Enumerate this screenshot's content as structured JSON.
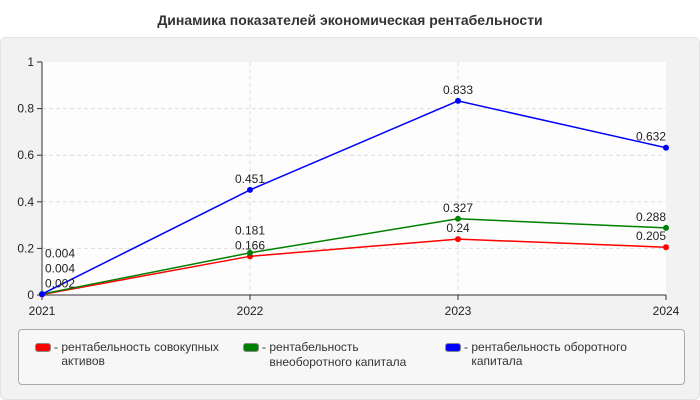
{
  "chart_data": {
    "type": "line",
    "title": "Динамика показателей экономическая рентабельности",
    "categories": [
      "2021",
      "2022",
      "2023",
      "2024"
    ],
    "ylim": [
      0,
      1
    ],
    "yticks": [
      "0",
      "0.2",
      "0.4",
      "0.6",
      "0.8",
      "1"
    ],
    "grid": true,
    "legend_position": "bottom",
    "series": [
      {
        "name": "рентабельность совокупных активов",
        "color": "#ff0000",
        "values": [
          0.002,
          0.166,
          0.24,
          0.205
        ]
      },
      {
        "name": "рентабельность внеоборотного капитала",
        "color": "#008000",
        "values": [
          0.004,
          0.181,
          0.327,
          0.288
        ]
      },
      {
        "name": "рентабельность оборотного капитала",
        "color": "#0000ff",
        "values": [
          0.004,
          0.451,
          0.833,
          0.632
        ]
      }
    ]
  }
}
